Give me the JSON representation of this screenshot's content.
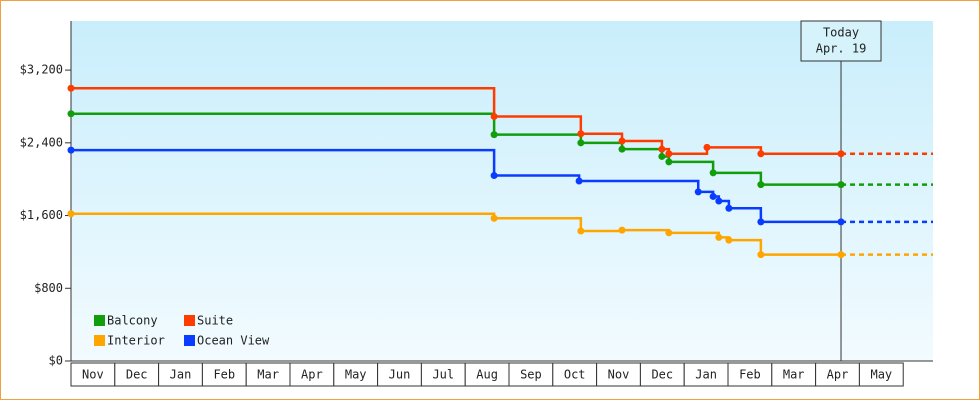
{
  "chart_data": {
    "type": "step",
    "ylim": [
      0,
      3740
    ],
    "yticks": [
      {
        "value": 0,
        "label": "$0"
      },
      {
        "value": 800,
        "label": "$800"
      },
      {
        "value": 1600,
        "label": "$1,600"
      },
      {
        "value": 2400,
        "label": "$2,400"
      },
      {
        "value": 3200,
        "label": "$3,200"
      }
    ],
    "xlim": [
      0,
      19.68
    ],
    "xticks": [
      {
        "value": 0,
        "label": "Nov"
      },
      {
        "value": 1,
        "label": "Dec"
      },
      {
        "value": 2,
        "label": "Jan"
      },
      {
        "value": 3,
        "label": "Feb"
      },
      {
        "value": 4,
        "label": "Mar"
      },
      {
        "value": 5,
        "label": "Apr"
      },
      {
        "value": 6,
        "label": "May"
      },
      {
        "value": 7,
        "label": "Jun"
      },
      {
        "value": 8,
        "label": "Jul"
      },
      {
        "value": 9,
        "label": "Aug"
      },
      {
        "value": 10,
        "label": "Sep"
      },
      {
        "value": 11,
        "label": "Oct"
      },
      {
        "value": 12,
        "label": "Nov"
      },
      {
        "value": 13,
        "label": "Dec"
      },
      {
        "value": 14,
        "label": "Jan"
      },
      {
        "value": 15,
        "label": "Feb"
      },
      {
        "value": 16,
        "label": "Mar"
      },
      {
        "value": 17,
        "label": "Apr"
      },
      {
        "value": 18,
        "label": "May"
      }
    ],
    "annotation": {
      "text": [
        "Today",
        "Apr. 19"
      ],
      "x": 17.58
    },
    "series": [
      {
        "name": "Balcony",
        "color": "#129d0a",
        "x": [
          0,
          9.66,
          11.64,
          12.58,
          13.49,
          13.65,
          14.66,
          15.75,
          17.58
        ],
        "values": [
          2720,
          2490,
          2400,
          2330,
          2250,
          2190,
          2070,
          1940,
          1940
        ]
      },
      {
        "name": "Suite",
        "color": "#ff3c00",
        "x": [
          0,
          9.66,
          11.64,
          12.58,
          13.49,
          13.65,
          14.52,
          15.75,
          17.58
        ],
        "values": [
          3000,
          2690,
          2500,
          2420,
          2330,
          2280,
          2350,
          2280,
          2280
        ]
      },
      {
        "name": "Interior",
        "color": "#ffa500",
        "x": [
          0,
          9.66,
          11.64,
          12.58,
          13.65,
          14.79,
          15.02,
          15.75,
          17.58
        ],
        "values": [
          1620,
          1570,
          1430,
          1440,
          1410,
          1360,
          1330,
          1170,
          1170
        ]
      },
      {
        "name": "Ocean View",
        "color": "#0a3cff",
        "x": [
          0,
          9.66,
          11.6,
          14.32,
          14.66,
          14.79,
          15.02,
          15.75,
          17.58
        ],
        "values": [
          2320,
          2040,
          1980,
          1860,
          1810,
          1760,
          1680,
          1530,
          1530
        ]
      }
    ]
  }
}
